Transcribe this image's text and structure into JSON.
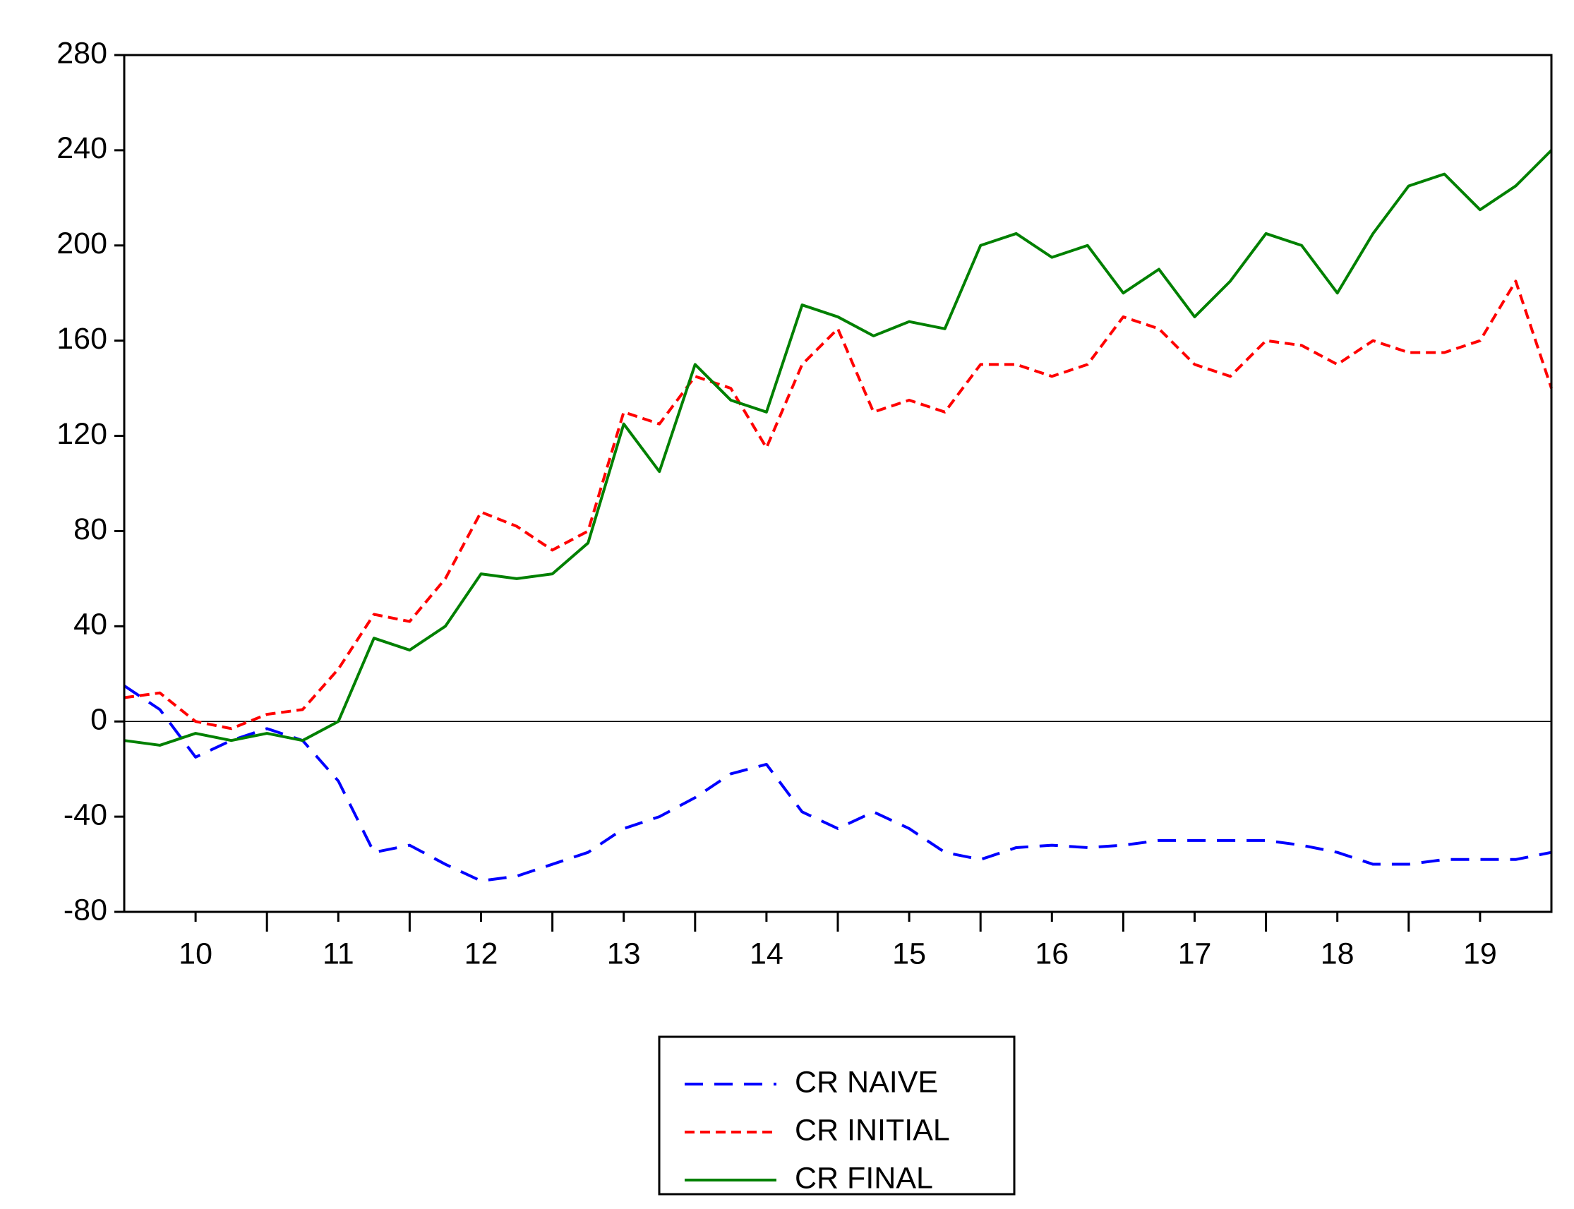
{
  "chart_data": {
    "type": "line",
    "x": [
      2010.0,
      2010.25,
      2010.5,
      2010.75,
      2011.0,
      2011.25,
      2011.5,
      2011.75,
      2012.0,
      2012.25,
      2012.5,
      2012.75,
      2013.0,
      2013.25,
      2013.5,
      2013.75,
      2014.0,
      2014.25,
      2014.5,
      2014.75,
      2015.0,
      2015.25,
      2015.5,
      2015.75,
      2016.0,
      2016.25,
      2016.5,
      2016.75,
      2017.0,
      2017.25,
      2017.5,
      2017.75,
      2018.0,
      2018.25,
      2018.5,
      2018.75,
      2019.0,
      2019.25,
      2019.5,
      2019.75,
      2020.0
    ],
    "series": [
      {
        "name": "CR NAIVE",
        "color": "#0000ff",
        "dash": "long-dash",
        "values": [
          15,
          5,
          -15,
          -8,
          -3,
          -8,
          -25,
          -55,
          -52,
          -60,
          -67,
          -65,
          -60,
          -55,
          -45,
          -40,
          -32,
          -22,
          -18,
          -38,
          -45,
          -38,
          -45,
          -55,
          -58,
          -53,
          -52,
          -53,
          -52,
          -50,
          -50,
          -50,
          -50,
          -52,
          -55,
          -60,
          -60,
          -58,
          -58,
          -58,
          -55
        ]
      },
      {
        "name": "CR INITIAL",
        "color": "#ff0000",
        "dash": "dash",
        "values": [
          10,
          12,
          0,
          -3,
          3,
          5,
          22,
          45,
          42,
          60,
          88,
          82,
          72,
          80,
          130,
          125,
          145,
          140,
          115,
          150,
          165,
          130,
          135,
          130,
          150,
          150,
          145,
          150,
          170,
          165,
          150,
          145,
          160,
          158,
          150,
          160,
          155,
          155,
          160,
          185,
          140
        ]
      },
      {
        "name": "CR FINAL",
        "color": "#008000",
        "dash": "solid",
        "values": [
          -8,
          -10,
          -5,
          -8,
          -5,
          -8,
          0,
          35,
          30,
          40,
          62,
          60,
          62,
          75,
          125,
          105,
          150,
          135,
          130,
          175,
          170,
          162,
          168,
          165,
          200,
          205,
          195,
          200,
          180,
          190,
          170,
          185,
          205,
          200,
          180,
          205,
          225,
          230,
          215,
          225,
          240
        ]
      }
    ],
    "xlim": [
      2010.0,
      2020.0
    ],
    "xticks": [
      {
        "value": 2010.5,
        "label": "10"
      },
      {
        "value": 2011.5,
        "label": "11"
      },
      {
        "value": 2012.5,
        "label": "12"
      },
      {
        "value": 2013.5,
        "label": "13"
      },
      {
        "value": 2014.5,
        "label": "14"
      },
      {
        "value": 2015.5,
        "label": "15"
      },
      {
        "value": 2016.5,
        "label": "16"
      },
      {
        "value": 2017.5,
        "label": "17"
      },
      {
        "value": 2018.5,
        "label": "18"
      },
      {
        "value": 2019.5,
        "label": "19"
      }
    ],
    "ylim": [
      -80,
      280
    ],
    "yticks": [
      -80,
      -40,
      0,
      40,
      80,
      120,
      160,
      200,
      240,
      280
    ],
    "hline": 0,
    "legend": "bottom"
  }
}
